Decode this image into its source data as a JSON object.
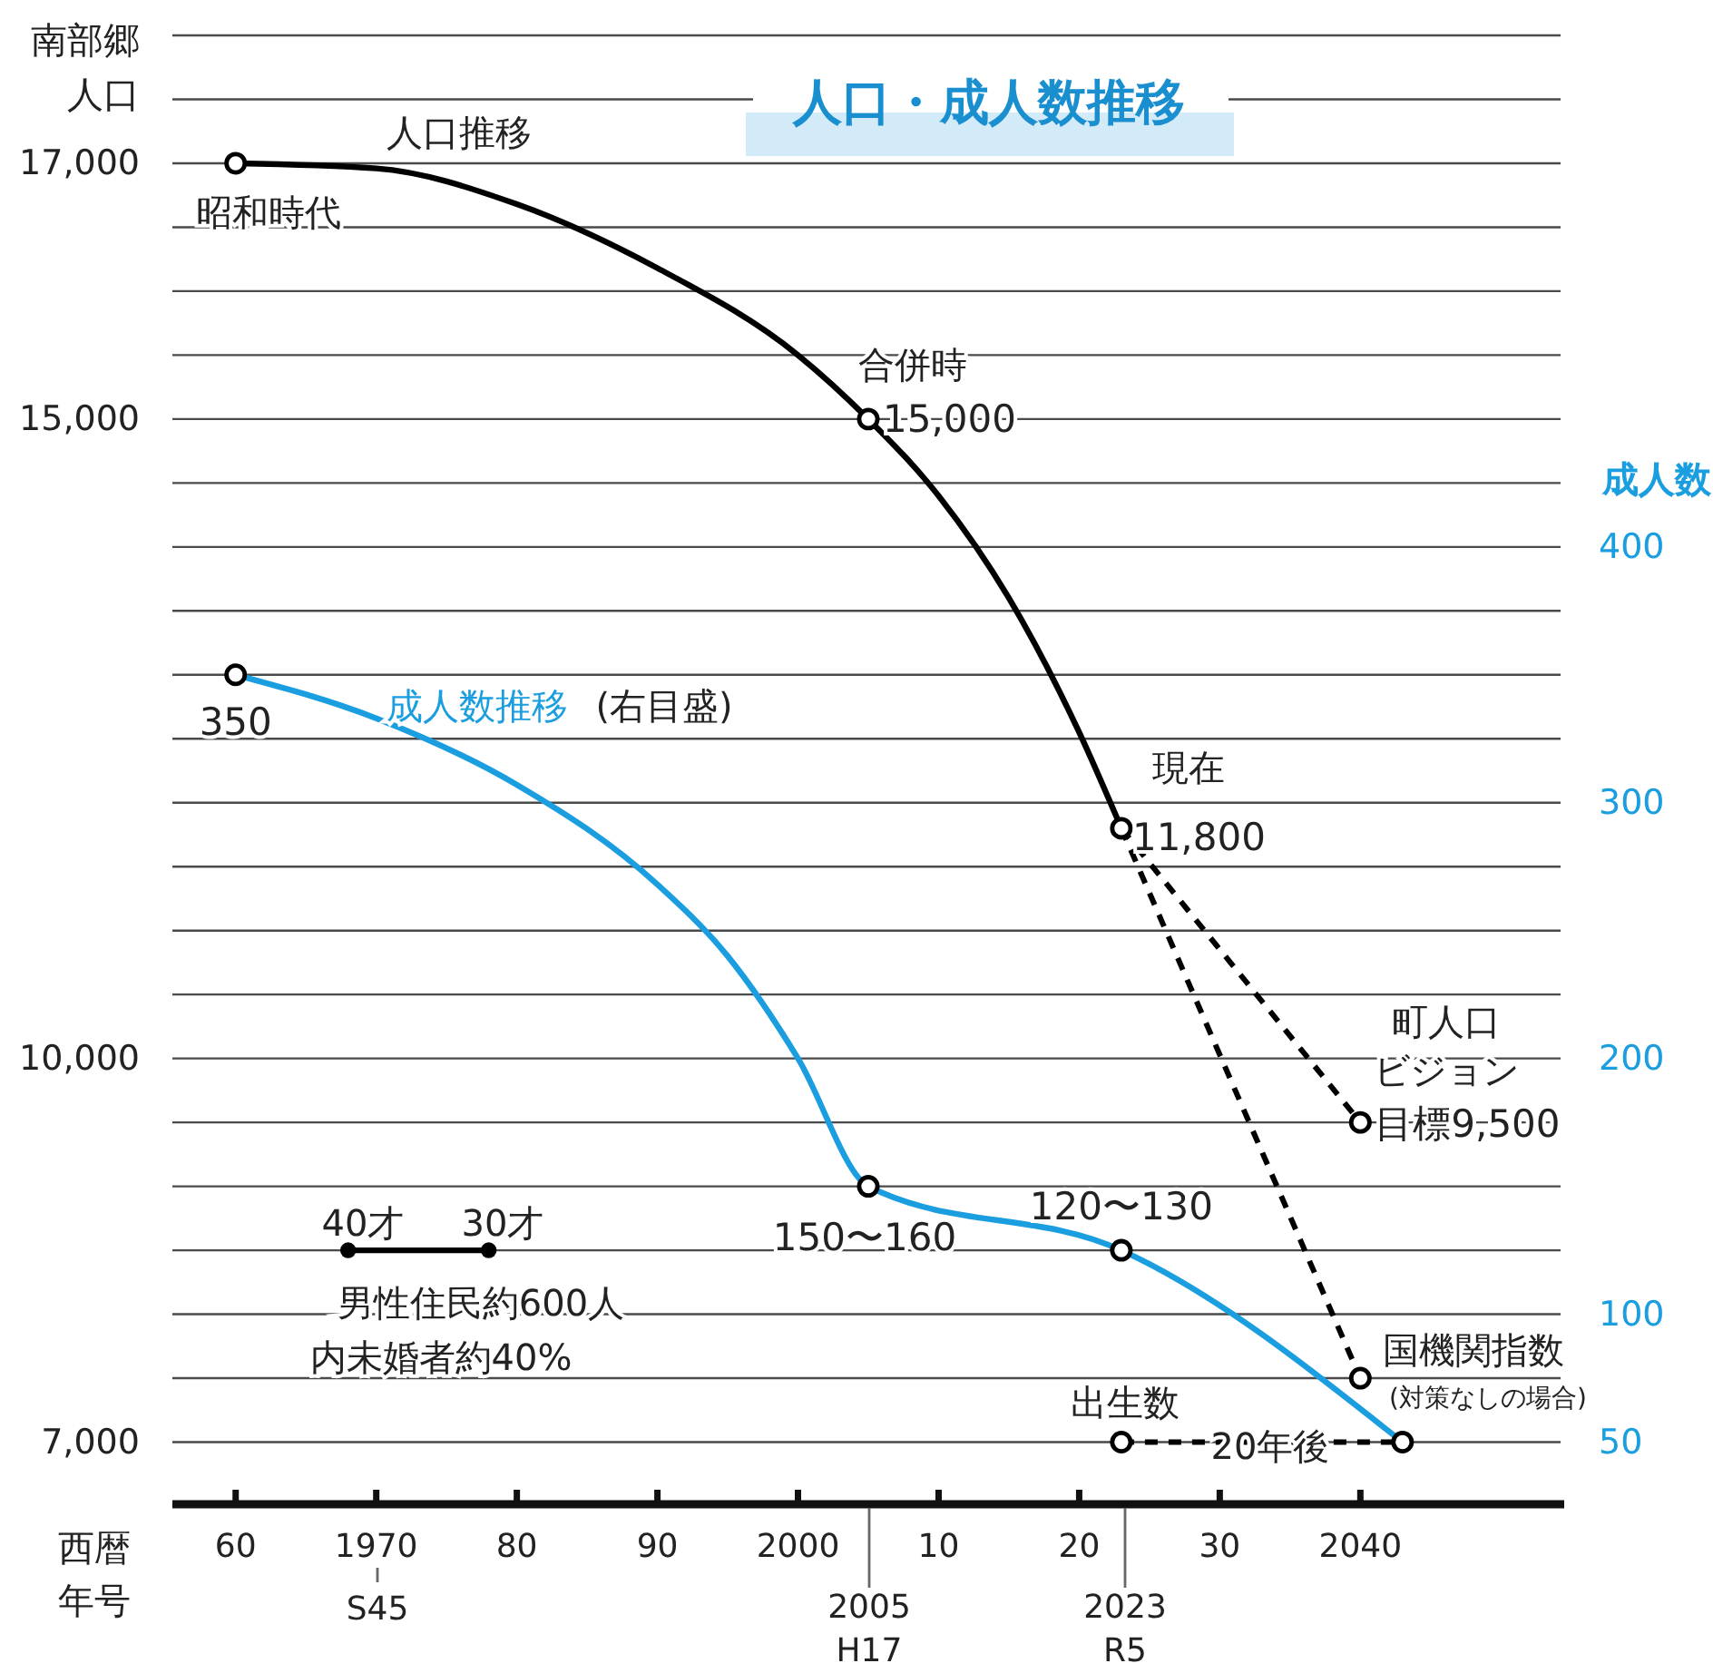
{
  "chart_data": {
    "type": "line",
    "title": "人口・成人数推移",
    "xlabel": "西暦",
    "ylabel": "南部郷人口",
    "y2label": "成人数",
    "xlim": [
      1955.5,
      2054.5
    ],
    "ylim": [
      6500,
      18000
    ],
    "y2lim": [
      25,
      600
    ],
    "xticks": [
      {
        "value": 1960,
        "label": "60"
      },
      1970,
      {
        "value": 1980,
        "label": "80"
      },
      {
        "value": 1990,
        "label": "90"
      },
      2000,
      {
        "value": 2010,
        "label": "10"
      },
      {
        "value": 2020,
        "label": "20"
      },
      {
        "value": 2030,
        "label": "30"
      },
      2040
    ],
    "yticks": [
      {
        "value": 7000,
        "label": "7,000"
      },
      {
        "value": 7500,
        "label": null
      },
      {
        "value": 8000,
        "label": null
      },
      {
        "value": 8500,
        "label": null
      },
      {
        "value": 9000,
        "label": null
      },
      {
        "value": 9500,
        "label": null
      },
      {
        "value": 10000,
        "label": "10,000"
      },
      {
        "value": 10500,
        "label": null
      },
      {
        "value": 11000,
        "label": null
      },
      {
        "value": 11500,
        "label": null
      },
      {
        "value": 12000,
        "label": null
      },
      {
        "value": 12500,
        "label": null
      },
      {
        "value": 13000,
        "label": null
      },
      {
        "value": 13500,
        "label": null
      },
      {
        "value": 14000,
        "label": null
      },
      {
        "value": 14500,
        "label": null
      },
      {
        "value": 15000,
        "label": "15,000"
      },
      {
        "value": 15500,
        "label": null
      },
      {
        "value": 16000,
        "label": null
      },
      {
        "value": 16500,
        "label": null
      },
      {
        "value": 17000,
        "label": "17,000"
      },
      {
        "value": 17500,
        "label": null
      },
      {
        "value": 18000,
        "label": null
      }
    ],
    "y2ticks": [
      50,
      100,
      200,
      300,
      400
    ],
    "grid": "y",
    "marker": "circle",
    "series": [
      {
        "color": "#000000",
        "marker": "none",
        "x": [
          1960,
          1970,
          1980,
          1990,
          2000,
          2005,
          2010,
          2015,
          2020,
          2023
        ],
        "values": [
          17000,
          16960,
          16680,
          16180,
          15500,
          15000,
          14400,
          13600,
          12550,
          11800
        ]
      },
      {
        "color": "#000000",
        "marker": "none",
        "line_style": "dashed",
        "x": [
          2023,
          2040
        ],
        "values": [
          11800,
          9500
        ]
      },
      {
        "color": "#000000",
        "marker": "none",
        "line_style": "dashed",
        "x": [
          2023,
          2040
        ],
        "values": [
          11800,
          7500
        ]
      },
      {
        "color": "#1a9ee0",
        "marker": "none",
        "axis": "y2",
        "x": [
          1960,
          1970,
          1980,
          1990,
          1995,
          2000,
          2005,
          2023,
          2043
        ],
        "values": [
          350,
          333,
          307,
          268,
          240,
          200,
          150,
          125,
          50
        ]
      },
      {
        "color": "#000000",
        "marker": "none",
        "line_style": "dashed",
        "axis": "y2",
        "x": [
          2023,
          2043
        ],
        "values": [
          50,
          50
        ]
      },
      {
        "color": "#000000",
        "marker": "circle",
        "x": [
          1968,
          1978
        ],
        "values": [
          8500,
          8500
        ]
      },
      {
        "type": "scatter",
        "color": "#000000",
        "x": [
          1960,
          2005,
          2023,
          2040,
          2040
        ],
        "values": [
          17000,
          15000,
          11800,
          9500,
          7500
        ],
        "value_labels": [
          null,
          "15,000",
          "11,800",
          "目標9,500",
          null
        ]
      },
      {
        "type": "scatter",
        "color": "#000000",
        "axis": "y2",
        "x": [
          1960,
          2005,
          2023,
          2023,
          2043
        ],
        "values": [
          350,
          150,
          125,
          50,
          50
        ],
        "value_labels": [
          "350",
          "150〜160",
          "120〜130",
          null,
          null
        ]
      }
    ],
    "annotations": [
      "人口推移",
      "昭和時代",
      "合併時",
      "現在",
      "町人口",
      "ビジョン",
      "成人数推移",
      "(右目盛)",
      "国機関指数",
      "(対策なしの場合)",
      "出生数",
      "20年後",
      "40才",
      "30才",
      "男性住民約600人",
      "内未婚者約40%",
      "S45",
      "2005",
      "H17",
      "2023",
      "R5",
      "年号"
    ]
  }
}
